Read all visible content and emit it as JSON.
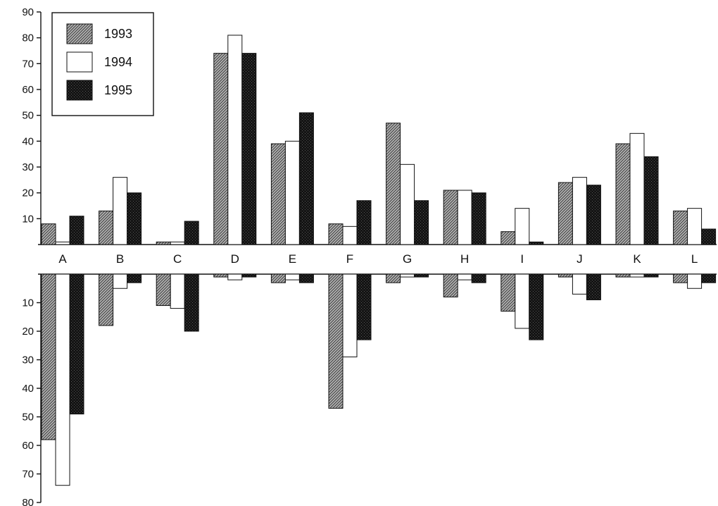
{
  "chart_data": {
    "type": "bar",
    "categories": [
      "A",
      "B",
      "C",
      "D",
      "E",
      "F",
      "G",
      "H",
      "I",
      "J",
      "K",
      "L"
    ],
    "legend_position": "top-left",
    "grid": false,
    "top_panel": {
      "ylim": [
        0,
        90
      ],
      "yticks": [
        "10",
        "20",
        "30",
        "40",
        "50",
        "60",
        "70",
        "80",
        "90"
      ],
      "series": [
        {
          "name": "1993",
          "values": [
            8,
            13,
            1,
            74,
            39,
            8,
            47,
            21,
            5,
            24,
            39,
            13
          ]
        },
        {
          "name": "1994",
          "values": [
            1,
            26,
            1,
            81,
            40,
            7,
            31,
            21,
            14,
            26,
            43,
            14
          ]
        },
        {
          "name": "1995",
          "values": [
            11,
            20,
            9,
            74,
            51,
            17,
            17,
            20,
            1,
            23,
            34,
            6
          ]
        }
      ]
    },
    "bottom_panel": {
      "ylim": [
        0,
        80
      ],
      "inverted": true,
      "yticks": [
        "10",
        "20",
        "30",
        "40",
        "50",
        "60",
        "70",
        "80"
      ],
      "series": [
        {
          "name": "1993",
          "values": [
            58,
            18,
            11,
            1,
            3,
            47,
            3,
            8,
            13,
            1,
            1,
            3
          ]
        },
        {
          "name": "1994",
          "values": [
            74,
            5,
            12,
            2,
            2,
            29,
            1,
            2,
            19,
            7,
            1,
            5
          ]
        },
        {
          "name": "1995",
          "values": [
            49,
            3,
            20,
            1,
            3,
            23,
            1,
            3,
            23,
            9,
            1,
            3
          ]
        }
      ]
    },
    "colors": {
      "1993": "#9a9a9a",
      "1994": "#ffffff",
      "1995": "#181818"
    }
  }
}
